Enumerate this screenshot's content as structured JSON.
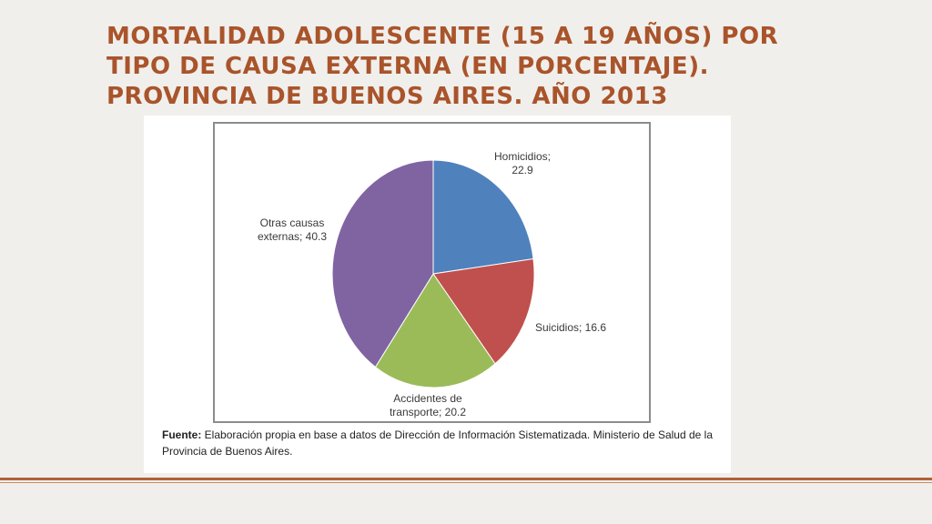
{
  "slide": {
    "title": "MORTALIDAD ADOLESCENTE (15 A 19 AÑOS) POR TIPO DE CAUSA EXTERNA (EN PORCENTAJE). PROVINCIA DE BUENOS AIRES. AÑO 2013",
    "source_label": "Fuente:",
    "source_text": " Elaboración propia en base a datos de Dirección de Información Sistematizada. Ministerio de Salud de la Provincia de Buenos Aires."
  },
  "colors": {
    "title": "#a9542b",
    "rule": "#b0603a"
  },
  "chart_data": {
    "type": "pie",
    "title": "MORTALIDAD ADOLESCENTE (15 A 19 AÑOS) POR TIPO DE CAUSA EXTERNA (EN PORCENTAJE). PROVINCIA DE BUENOS AIRES. AÑO 2013",
    "slices": [
      {
        "label": "Homicidios",
        "value": 22.9,
        "label_lines": [
          "Homicidios;",
          "22.9"
        ],
        "color": "#4f81bd"
      },
      {
        "label": "Suicidios",
        "value": 16.6,
        "label_lines": [
          "Suicidios; 16.6"
        ],
        "color": "#c0504d"
      },
      {
        "label": "Accidentes de transporte",
        "value": 20.2,
        "label_lines": [
          "Accidentes de",
          "transporte; 20.2"
        ],
        "color": "#9bbb59"
      },
      {
        "label": "Otras causas externas",
        "value": 40.3,
        "label_lines": [
          "Otras causas",
          "externas; 40.3"
        ],
        "color": "#8064a2"
      }
    ],
    "start_angle": "12 o'clock",
    "direction": "clockwise",
    "legend": "none (data labels)"
  }
}
